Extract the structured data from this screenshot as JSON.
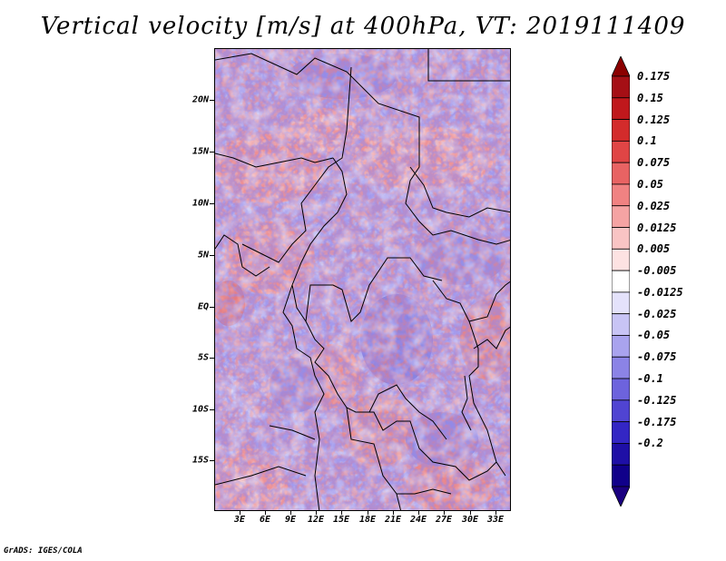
{
  "title": "Vertical velocity [m/s] at 400hPa, VT: 2019111409",
  "credit": "GrADS: IGES/COLA",
  "map": {
    "lat_labels": [
      "20N",
      "15N",
      "10N",
      "5N",
      "EQ",
      "5S",
      "10S",
      "15S"
    ],
    "lon_labels": [
      "3E",
      "6E",
      "9E",
      "12E",
      "15E",
      "18E",
      "21E",
      "24E",
      "27E",
      "30E",
      "33E"
    ]
  },
  "colorbar": {
    "levels": [
      "0.175",
      "0.15",
      "0.125",
      "0.1",
      "0.075",
      "0.05",
      "0.025",
      "0.0125",
      "0.005",
      "-0.005",
      "-0.0125",
      "-0.025",
      "-0.05",
      "-0.075",
      "-0.1",
      "-0.125",
      "-0.175",
      "-0.2"
    ],
    "colors": [
      "#a50f15",
      "#c0181c",
      "#d32b2b",
      "#e04545",
      "#e86363",
      "#f08282",
      "#f5a3a3",
      "#f9c4c4",
      "#fde2e2",
      "#ffffff",
      "#e4e2fb",
      "#c8c4f5",
      "#a9a3ee",
      "#8b83e6",
      "#6d63dd",
      "#5044d2",
      "#3326c4",
      "#1e0fa6",
      "#10008a"
    ],
    "top_cap_color": "#8b0000",
    "bottom_cap_color": "#1a0080"
  }
}
